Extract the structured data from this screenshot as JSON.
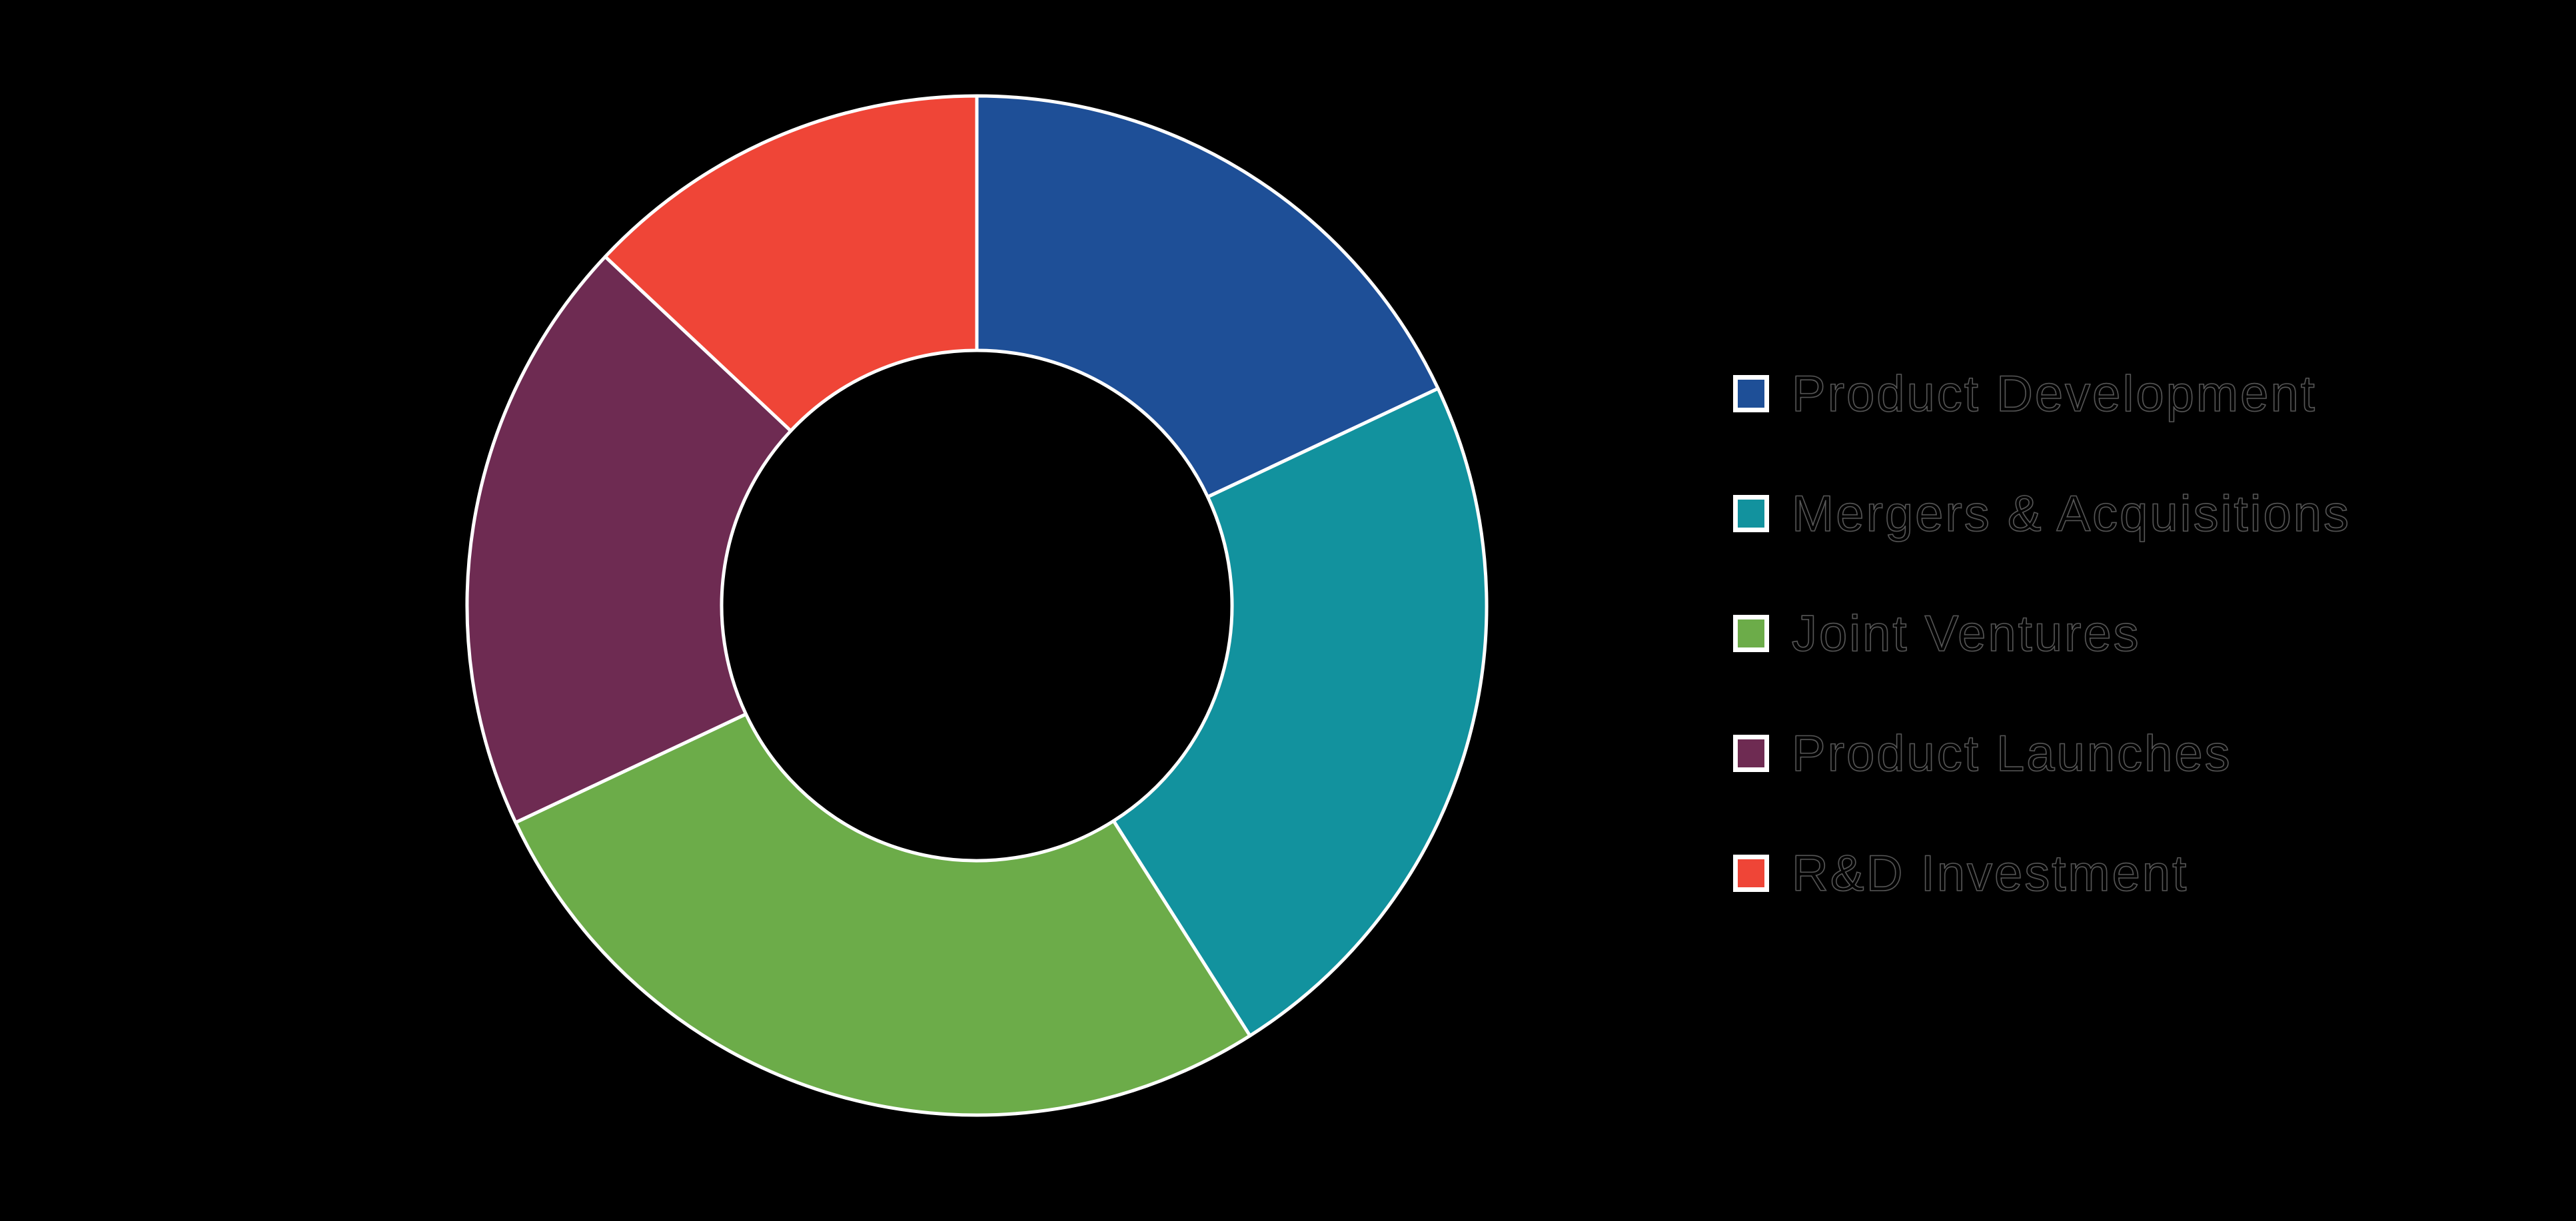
{
  "canvas": {
    "background": "#000000",
    "segment_border_color": "#ffffff",
    "text_color": "#000000"
  },
  "chart_data": {
    "type": "pie",
    "subtype": "donut",
    "categories": [
      "Product Development",
      "Mergers & Acquisitions",
      "Joint Ventures",
      "Product Launches",
      "R&D Investment"
    ],
    "values": [
      18,
      23,
      27,
      19,
      13
    ],
    "unit": "%",
    "colors": [
      "#1e4f97",
      "#12929e",
      "#6cac49",
      "#6e2b52",
      "#ef4537"
    ],
    "title": "",
    "start_angle_deg": 0,
    "direction": "clockwise",
    "inner_radius_ratio": 0.5,
    "grid": false,
    "data_labels": false,
    "legend_position": "right"
  },
  "legend": {
    "items": [
      {
        "label": "Product Development",
        "color": "#1e4f97"
      },
      {
        "label": "Mergers & Acquisitions",
        "color": "#12929e"
      },
      {
        "label": "Joint Ventures",
        "color": "#6cac49"
      },
      {
        "label": "Product Launches",
        "color": "#6e2b52"
      },
      {
        "label": "R&D Investment",
        "color": "#ef4537"
      }
    ]
  }
}
